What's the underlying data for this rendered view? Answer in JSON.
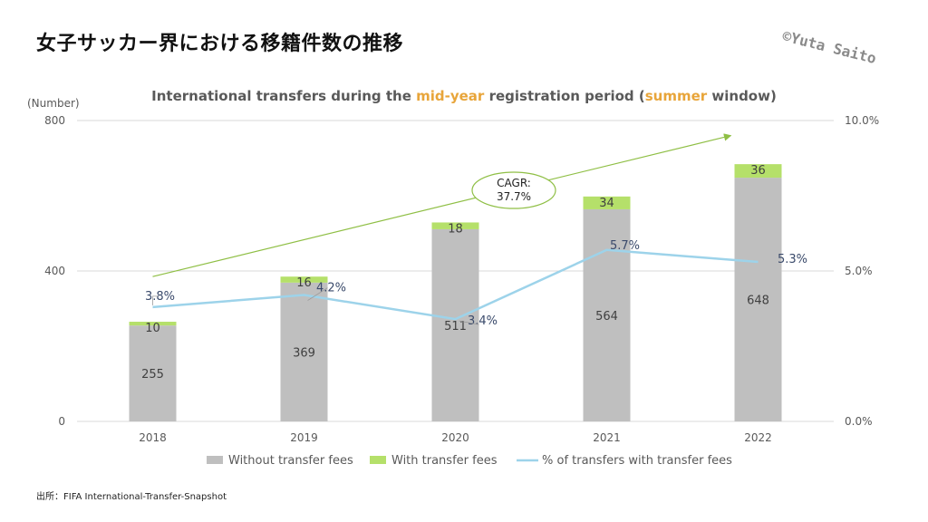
{
  "page": {
    "title": "女子サッカー界における移籍件数の推移",
    "watermark": "©Yuta Saito",
    "source": "出所：FIFA International-Transfer-Snapshot"
  },
  "chart_data": {
    "type": "bar",
    "stacked": true,
    "title_parts": [
      {
        "text": "International transfers during the ",
        "highlight": false
      },
      {
        "text": "mid-year",
        "highlight": true
      },
      {
        "text": " registration period (",
        "highlight": false
      },
      {
        "text": "summer",
        "highlight": true
      },
      {
        "text": " window)",
        "highlight": false
      }
    ],
    "ylabel": "(Number)",
    "categories": [
      "2018",
      "2019",
      "2020",
      "2021",
      "2022"
    ],
    "series": [
      {
        "name": "Without transfer fees",
        "type": "bar",
        "axis": "left",
        "color": "#bfbfbf",
        "values": [
          255,
          369,
          511,
          564,
          648
        ]
      },
      {
        "name": "With transfer fees",
        "type": "bar",
        "axis": "left",
        "color": "#b5e06a",
        "values": [
          10,
          16,
          18,
          34,
          36
        ]
      },
      {
        "name": "% of transfers with transfer fees",
        "type": "line",
        "axis": "right",
        "color": "#9dd3ea",
        "values": [
          3.8,
          4.2,
          3.4,
          5.7,
          5.3
        ],
        "labels": [
          "3.8%",
          "4.2%",
          "3.4%",
          "5.7%",
          "5.3%"
        ]
      }
    ],
    "ylim": [
      0,
      800
    ],
    "yticks": [
      0,
      400,
      800
    ],
    "ytick_labels": [
      "0",
      "400",
      "800"
    ],
    "y2lim": [
      0,
      10
    ],
    "y2ticks": [
      0,
      5,
      10
    ],
    "y2tick_labels": [
      "0.0%",
      "5.0%",
      "10.0%"
    ],
    "trend": {
      "start_value": 385,
      "end_value": 760,
      "color": "#8fbf45"
    },
    "annotation": {
      "line1": "CAGR:",
      "line2": "37.7%"
    },
    "legend_position": "bottom",
    "grid": true
  }
}
